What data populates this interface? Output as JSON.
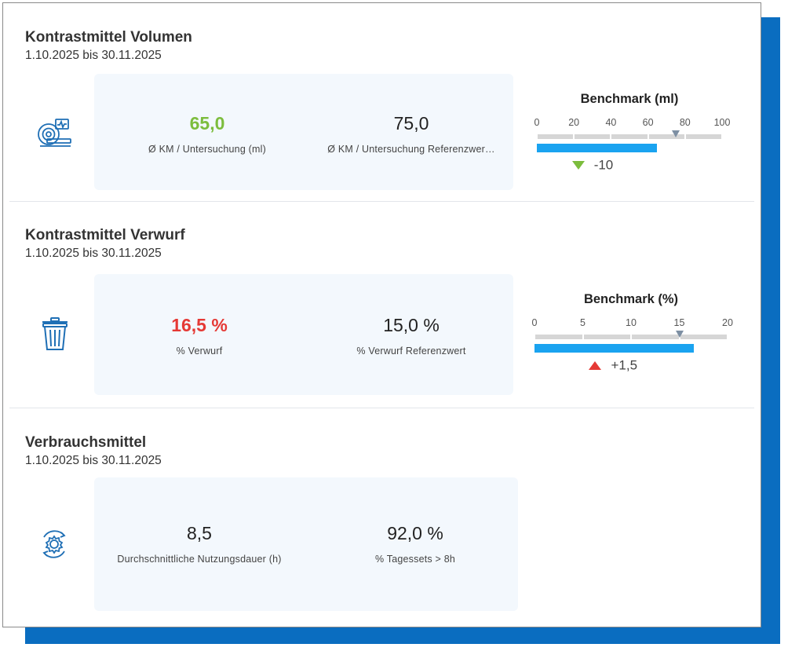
{
  "colors": {
    "accent": "#0a6dc0",
    "good": "#7cbd3d",
    "bad": "#e53935",
    "bar": "#1aa3f0",
    "marker": "#7d8fa3"
  },
  "sections": [
    {
      "title": "Kontrastmittel Volumen",
      "date_range": "1.10.2025 bis 30.11.2025",
      "icon": "mri-scanner-icon",
      "metrics": [
        {
          "value": "65,0",
          "label": "Ø KM / Untersuchung (ml)",
          "status": "good"
        },
        {
          "value": "75,0",
          "label": "Ø KM / Untersuchung Referenzwer…"
        }
      ],
      "benchmark": {
        "title": "Benchmark (ml)",
        "ticks": [
          "0",
          "20",
          "40",
          "60",
          "80",
          "100"
        ],
        "range": [
          0,
          100
        ],
        "value": 65,
        "reference": 75,
        "delta": "-10",
        "direction": "down"
      }
    },
    {
      "title": "Kontrastmittel Verwurf",
      "date_range": "1.10.2025 bis 30.11.2025",
      "icon": "trash-bin-icon",
      "metrics": [
        {
          "value": "16,5 %",
          "label": "% Verwurf",
          "status": "bad"
        },
        {
          "value": "15,0 %",
          "label": "% Verwurf Referenzwert"
        }
      ],
      "benchmark": {
        "title": "Benchmark (%)",
        "ticks": [
          "0",
          "5",
          "10",
          "15",
          "20"
        ],
        "range": [
          0,
          20
        ],
        "value": 16.5,
        "reference": 15,
        "delta": "+1,5",
        "direction": "up"
      }
    },
    {
      "title": "Verbrauchsmittel",
      "date_range": "1.10.2025 bis 30.11.2025",
      "icon": "gear-cycle-icon",
      "metrics": [
        {
          "value": "8,5",
          "label": "Durchschnittliche Nutzungsdauer (h)"
        },
        {
          "value": "92,0 %",
          "label": "% Tagessets > 8h"
        }
      ]
    }
  ]
}
